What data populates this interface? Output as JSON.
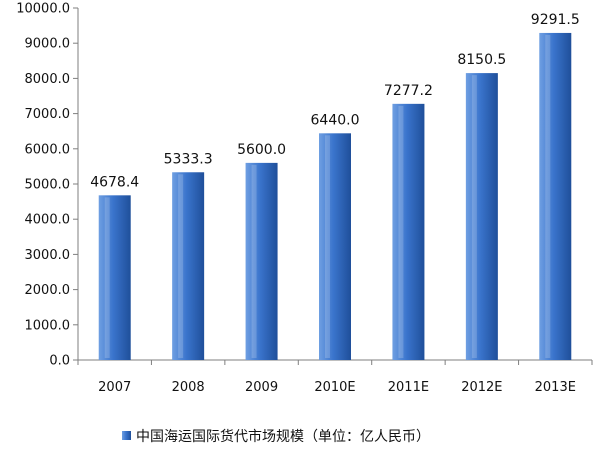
{
  "chart_data": {
    "type": "bar",
    "categories": [
      "2007",
      "2008",
      "2009",
      "2010E",
      "2011E",
      "2012E",
      "2013E"
    ],
    "series": [
      {
        "name": "中国海运国际货代市场规模（单位：亿人民币）",
        "values": [
          4678.4,
          5333.3,
          5600.0,
          6440.0,
          7277.2,
          8150.5,
          9291.5
        ],
        "labels": [
          "4678.4",
          "5333.3",
          "5600.0",
          "6440.0",
          "7277.2",
          "8150.5",
          "9291.5"
        ]
      }
    ],
    "ylim": [
      0,
      10000
    ],
    "yticks": [
      0,
      1000,
      2000,
      3000,
      4000,
      5000,
      6000,
      7000,
      8000,
      9000,
      10000
    ],
    "ytick_labels": [
      "0.0",
      "1000.0",
      "2000.0",
      "3000.0",
      "4000.0",
      "5000.0",
      "6000.0",
      "7000.0",
      "8000.0",
      "9000.0",
      "10000.0"
    ],
    "grid": false,
    "legend": "bottom",
    "colors": {
      "bar_light": "#6f9fe2",
      "bar_mid": "#3a74cc",
      "bar_dark": "#1f4f9a",
      "axis": "#7f7f7f"
    }
  }
}
